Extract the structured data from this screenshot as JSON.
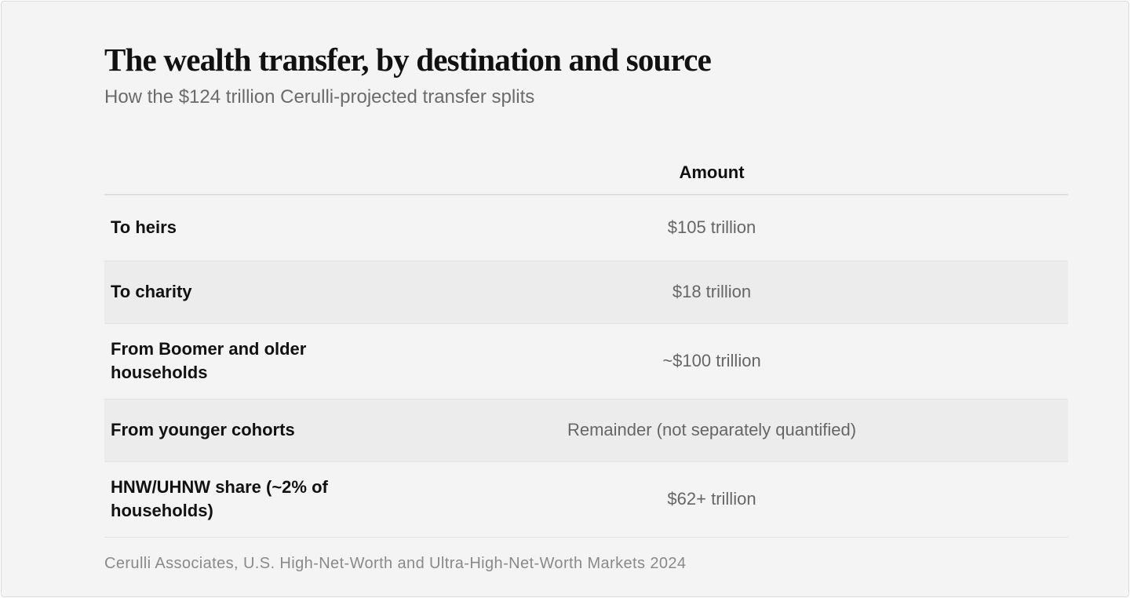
{
  "header": {
    "title": "The wealth transfer, by destination and source",
    "subtitle": "How the $124 trillion Cerulli-projected transfer splits"
  },
  "table": {
    "column_header": "Amount",
    "rows": [
      [
        "To heirs",
        "$105 trillion"
      ],
      [
        "To charity",
        "$18 trillion"
      ],
      [
        "From Boomer and older households",
        "~$100 trillion"
      ],
      [
        "From younger cohorts",
        "Remainder (not separately quantified)"
      ],
      [
        "HNW/UHNW share (~2% of households)",
        "$62+ trillion"
      ]
    ]
  },
  "footer": {
    "source": "Cerulli Associates, U.S. High-Net-Worth and Ultra-High-Net-Worth Markets 2024"
  }
}
